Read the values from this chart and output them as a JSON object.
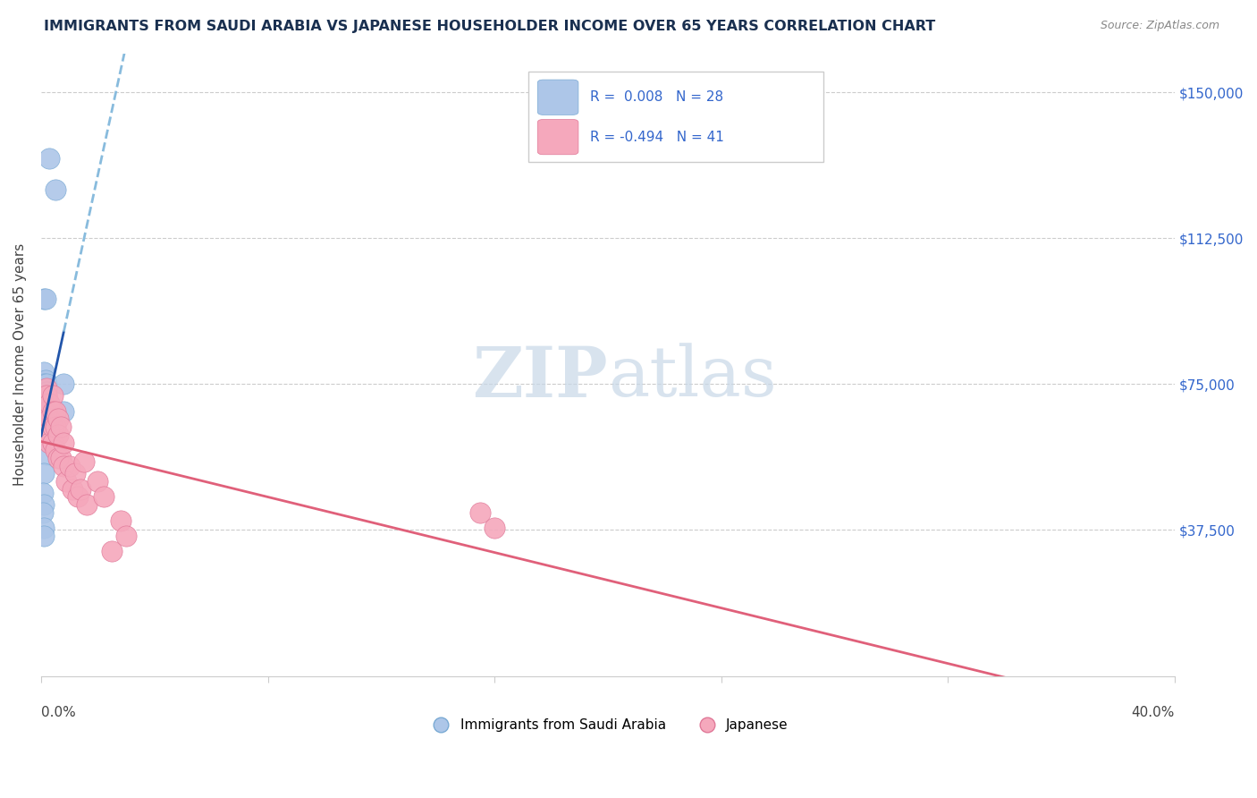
{
  "title": "IMMIGRANTS FROM SAUDI ARABIA VS JAPANESE HOUSEHOLDER INCOME OVER 65 YEARS CORRELATION CHART",
  "source": "Source: ZipAtlas.com",
  "ylabel": "Householder Income Over 65 years",
  "yticks": [
    0,
    37500,
    75000,
    112500,
    150000
  ],
  "ytick_labels": [
    "",
    "$37,500",
    "$75,000",
    "$112,500",
    "$150,000"
  ],
  "xlim": [
    0.0,
    0.4
  ],
  "ylim": [
    0,
    160000
  ],
  "legend_label1": "Immigrants from Saudi Arabia",
  "legend_label2": "Japanese",
  "blue_color": "#adc6e8",
  "blue_edge_color": "#7aaad4",
  "pink_color": "#f5a8bc",
  "pink_edge_color": "#e07898",
  "blue_line_color": "#2255aa",
  "pink_line_color": "#e0607a",
  "blue_dash_color": "#88bbdd",
  "title_color": "#1a3050",
  "grid_color": "#cccccc",
  "watermark_color": "#c8d8e8",
  "right_label_color": "#3366cc",
  "blue_scatter_x": [
    0.003,
    0.005,
    0.001,
    0.0015,
    0.001,
    0.0015,
    0.001,
    0.002,
    0.002,
    0.002,
    0.002,
    0.003,
    0.003,
    0.003,
    0.003,
    0.004,
    0.004,
    0.004,
    0.003,
    0.002,
    0.001,
    0.0005,
    0.001,
    0.0005,
    0.001,
    0.001,
    0.008,
    0.008
  ],
  "blue_scatter_y": [
    133000,
    125000,
    97000,
    97000,
    78000,
    76000,
    75000,
    75000,
    73000,
    72000,
    70000,
    70000,
    68000,
    68000,
    67000,
    68000,
    67000,
    66000,
    65000,
    57000,
    52000,
    47000,
    44000,
    42000,
    38000,
    36000,
    75000,
    68000
  ],
  "pink_scatter_x": [
    0.001,
    0.001,
    0.001,
    0.001,
    0.002,
    0.002,
    0.002,
    0.002,
    0.003,
    0.003,
    0.003,
    0.003,
    0.004,
    0.004,
    0.004,
    0.004,
    0.005,
    0.005,
    0.005,
    0.006,
    0.006,
    0.006,
    0.007,
    0.007,
    0.008,
    0.008,
    0.009,
    0.01,
    0.011,
    0.012,
    0.013,
    0.014,
    0.015,
    0.016,
    0.02,
    0.022,
    0.025,
    0.028,
    0.03,
    0.155,
    0.16
  ],
  "pink_scatter_y": [
    70000,
    68000,
    65000,
    62000,
    74000,
    72000,
    68000,
    65000,
    70000,
    66000,
    63000,
    60000,
    72000,
    68000,
    64000,
    60000,
    68000,
    64000,
    58000,
    66000,
    62000,
    56000,
    64000,
    56000,
    60000,
    54000,
    50000,
    54000,
    48000,
    52000,
    46000,
    48000,
    55000,
    44000,
    50000,
    46000,
    32000,
    40000,
    36000,
    42000,
    38000
  ]
}
